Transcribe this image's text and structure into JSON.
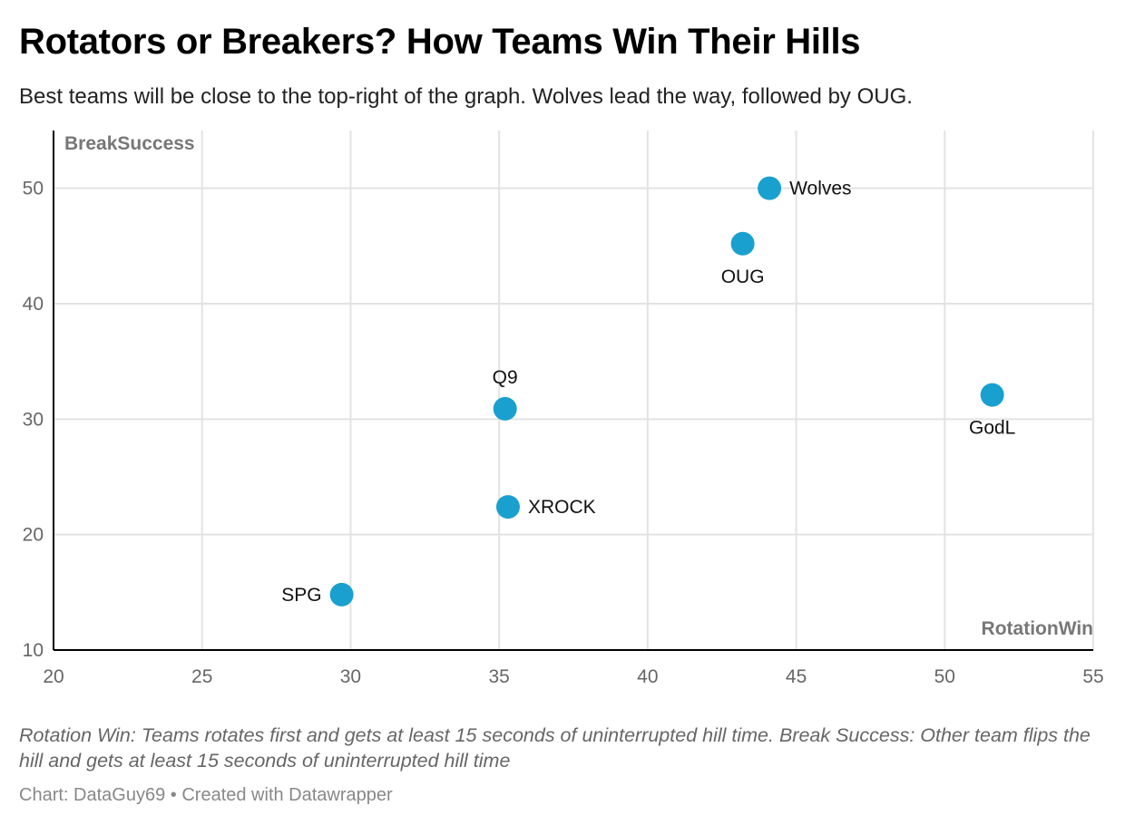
{
  "header": {
    "title": "Rotators or Breakers? How Teams Win Their Hills",
    "subtitle": "Best teams will be close to the top-right of the graph. Wolves lead the way, followed by OUG."
  },
  "footer": {
    "notes": "Rotation Win: Teams rotates first and gets at least 15 seconds of uninterrupted hill time. Break Success: Other team flips the hill and gets at least 15 seconds of uninterrupted hill time",
    "credit_prefix": "Chart: DataGuy69",
    "credit_separator": "•",
    "credit_suffix": "Created with Datawrapper"
  },
  "colors": {
    "point": "#1aa0cf",
    "gridline": "#e3e3e3",
    "axis_line": "#000000",
    "tick_label": "#666666",
    "axis_title": "#777777",
    "point_label": "#111111"
  },
  "chart_data": {
    "type": "scatter",
    "xlabel": "RotationWin",
    "ylabel": "BreakSuccess",
    "xlim": [
      20,
      55
    ],
    "ylim": [
      10,
      55
    ],
    "x_ticks": [
      20,
      25,
      30,
      35,
      40,
      45,
      50,
      55
    ],
    "y_ticks": [
      10,
      20,
      30,
      40,
      50
    ],
    "grid": true,
    "legend": "none",
    "points": [
      {
        "label": "Wolves",
        "x": 44.1,
        "y": 50.0,
        "label_position": "right"
      },
      {
        "label": "OUG",
        "x": 43.2,
        "y": 45.2,
        "label_position": "below"
      },
      {
        "label": "Q9",
        "x": 35.2,
        "y": 30.9,
        "label_position": "above"
      },
      {
        "label": "GodL",
        "x": 51.6,
        "y": 32.1,
        "label_position": "below"
      },
      {
        "label": "XROCK",
        "x": 35.3,
        "y": 22.4,
        "label_position": "right"
      },
      {
        "label": "SPG",
        "x": 29.7,
        "y": 14.8,
        "label_position": "left"
      }
    ]
  }
}
